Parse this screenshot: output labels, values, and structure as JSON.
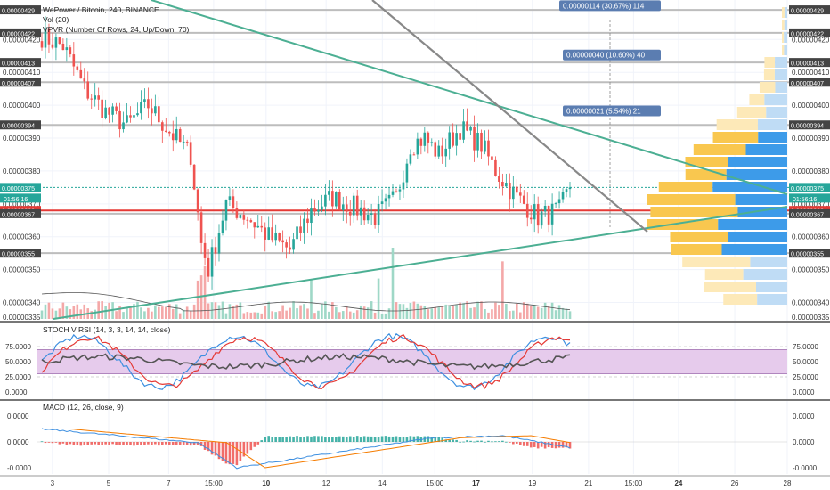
{
  "chart_data": {
    "type": "candlestick",
    "title": "WePower / Bitcoin, 240, BINANCE",
    "indicators": [
      "Vol (20)",
      "VPVR (Number Of Rows, 24, Up/Down, 70)"
    ],
    "price_scale": {
      "min": 3.35e-06,
      "max": 4.32e-06
    },
    "price_ticks": [
      "0.00000420",
      "0.00000410",
      "0.00000400",
      "0.00000390",
      "0.00000380",
      "0.00000370",
      "0.00000360",
      "0.00000350",
      "0.00000340"
    ],
    "price_tick_values": [
      4.2e-06,
      4.1e-06,
      4e-06,
      3.9e-06,
      3.8e-06,
      3.7e-06,
      3.6e-06,
      3.5e-06,
      3.4e-06
    ],
    "level_labels": [
      {
        "text": "0.00000429",
        "value": 4.29e-06,
        "color": "#444444"
      },
      {
        "text": "0.00000422",
        "value": 4.22e-06,
        "color": "#444444"
      },
      {
        "text": "0.00000413",
        "value": 4.13e-06,
        "color": "#444444"
      },
      {
        "text": "0.00000407",
        "value": 4.07e-06,
        "color": "#444444"
      },
      {
        "text": "0.00000394",
        "value": 3.94e-06,
        "color": "#444444"
      },
      {
        "text": "0.00000375",
        "value": 3.75e-06,
        "color": "#26a69a"
      },
      {
        "text": "0.00000368",
        "value": 3.68e-06,
        "color": "#e53935"
      },
      {
        "text": "0.00000367",
        "value": 3.67e-06,
        "color": "#444444"
      },
      {
        "text": "0.00000355",
        "value": 3.55e-06,
        "color": "#444444"
      }
    ],
    "bottom_partial_label": "0.00000335",
    "countdown_label": "01:56:16",
    "measure_labels": [
      {
        "text": "0.00000114 (30.67%) 114",
        "value": 4.3e-06
      },
      {
        "text": "0.00000040 (10.60%) 40",
        "value": 4.15e-06
      },
      {
        "text": "0.00000021 (5.54%) 21",
        "value": 3.98e-06
      }
    ],
    "x_labels": [
      "3",
      "5",
      "7",
      "15:00",
      "10",
      "12",
      "14",
      "15:00",
      "17",
      "19",
      "21",
      "15:00",
      "24",
      "26",
      "28"
    ],
    "x_label_positions": [
      0.02,
      0.095,
      0.175,
      0.235,
      0.305,
      0.385,
      0.46,
      0.53,
      0.585,
      0.66,
      0.735,
      0.795,
      0.855,
      0.93,
      1.0
    ],
    "candles_count": 150,
    "last_close": 3.75e-06,
    "stoch_rsi": {
      "label": "STOCH V RSI (14, 3, 3, 14, 14, close)",
      "ticks": [
        "75.0000",
        "50.0000",
        "25.0000",
        "0.0000"
      ],
      "tick_values": [
        75,
        50,
        25,
        0
      ],
      "band": [
        30,
        70
      ]
    },
    "macd": {
      "label": "MACD (12, 26, close, 9)",
      "ticks": [
        "0.0000",
        "0.0000",
        "-0.0000"
      ],
      "tick_values": [
        0.5,
        0,
        -0.5
      ]
    }
  }
}
